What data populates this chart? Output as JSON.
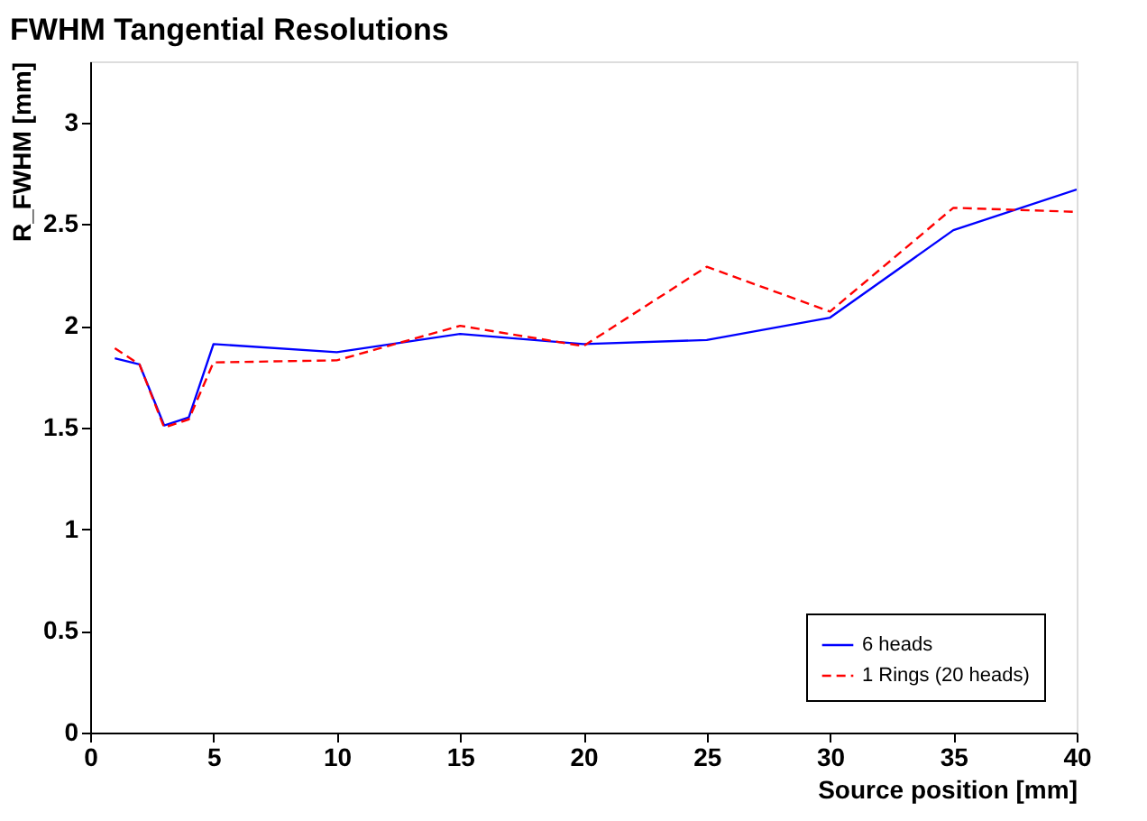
{
  "chart_data": {
    "type": "line",
    "title": "FWHM Tangential Resolutions",
    "xlabel": "Source position [mm]",
    "ylabel": "R_FWHM [mm]",
    "x": [
      1,
      2,
      3,
      4,
      5,
      10,
      15,
      20,
      25,
      30,
      35,
      40
    ],
    "series": [
      {
        "name": "6 heads",
        "color": "#0000ff",
        "line_style": "solid",
        "values": [
          1.84,
          1.81,
          1.51,
          1.55,
          1.91,
          1.87,
          1.96,
          1.91,
          1.93,
          2.04,
          2.47,
          2.67
        ]
      },
      {
        "name": "1 Rings (20 heads)",
        "color": "#ff0000",
        "line_style": "dashed",
        "values": [
          1.89,
          1.81,
          1.5,
          1.54,
          1.82,
          1.83,
          2.0,
          1.9,
          2.29,
          2.07,
          2.58,
          2.56
        ]
      }
    ],
    "xlim": [
      0,
      40
    ],
    "xticks": [
      0,
      5,
      10,
      15,
      20,
      25,
      30,
      35,
      40
    ],
    "ylim": [
      0,
      3.3
    ],
    "yticks": [
      0,
      0.5,
      1,
      1.5,
      2,
      2.5,
      3
    ],
    "grid": false,
    "legend": "bottom right",
    "marker": "none"
  }
}
